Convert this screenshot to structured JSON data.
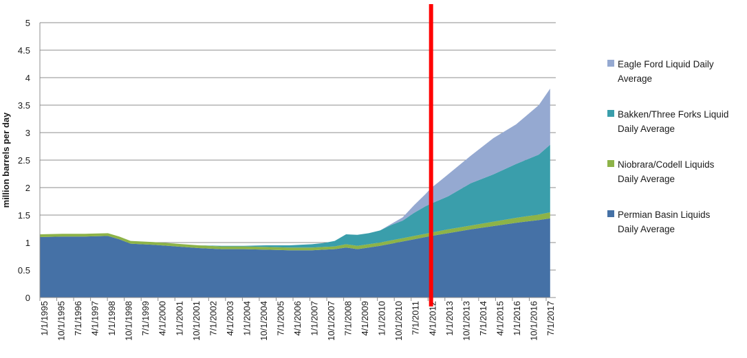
{
  "chart_data": {
    "type": "area",
    "stacked": true,
    "ylabel": "million barrels per day",
    "xlabel": "",
    "ylim": [
      0,
      5
    ],
    "yticks": [
      "0",
      "0.5",
      "1",
      "1.5",
      "2",
      "2.5",
      "3",
      "3.5",
      "4",
      "4.5",
      "5"
    ],
    "grid": true,
    "legend_position": "right",
    "x_tick_labels": [
      "1/1/1995",
      "10/1/1995",
      "7/1/1996",
      "4/1/1997",
      "1/1/1998",
      "10/1/1998",
      "7/1/1999",
      "4/1/2000",
      "1/1/2001",
      "10/1/2001",
      "7/1/2002",
      "4/1/2003",
      "1/1/2004",
      "10/1/2004",
      "7/1/2005",
      "4/1/2006",
      "1/1/2007",
      "10/1/2007",
      "7/1/2008",
      "4/1/2009",
      "1/1/2010",
      "10/1/2010",
      "7/1/2011",
      "4/1/2012",
      "1/1/2013",
      "10/1/2013",
      "7/1/2014",
      "4/1/2015",
      "1/1/2016",
      "10/1/2016",
      "7/1/2017"
    ],
    "x": [
      1995.0,
      1996.0,
      1997.0,
      1998.0,
      1998.5,
      1999.0,
      2000.0,
      2001.0,
      2002.0,
      2003.0,
      2004.0,
      2005.0,
      2006.0,
      2007.0,
      2007.5,
      2008.0,
      2008.5,
      2009.0,
      2009.5,
      2010.0,
      2010.5,
      2011.0,
      2011.5,
      2012.0,
      2012.25,
      2013.0,
      2014.0,
      2015.0,
      2016.0,
      2017.0,
      2017.5
    ],
    "series": [
      {
        "name": "Permian Basin Liquids Daily Average",
        "color": "#4571a6",
        "values": [
          1.1,
          1.11,
          1.11,
          1.12,
          1.06,
          0.98,
          0.96,
          0.93,
          0.9,
          0.88,
          0.88,
          0.87,
          0.86,
          0.86,
          0.87,
          0.88,
          0.91,
          0.88,
          0.91,
          0.94,
          0.98,
          1.02,
          1.06,
          1.1,
          1.12,
          1.17,
          1.24,
          1.3,
          1.36,
          1.41,
          1.44
        ]
      },
      {
        "name": "Niobrara/Codell Liquids Daily Average",
        "color": "#8db348",
        "values": [
          0.05,
          0.05,
          0.05,
          0.05,
          0.05,
          0.05,
          0.05,
          0.05,
          0.05,
          0.05,
          0.05,
          0.05,
          0.05,
          0.05,
          0.05,
          0.05,
          0.06,
          0.06,
          0.06,
          0.06,
          0.06,
          0.06,
          0.06,
          0.06,
          0.06,
          0.07,
          0.07,
          0.08,
          0.09,
          0.1,
          0.11
        ]
      },
      {
        "name": "Bakken/Three Forks Liquid Daily Average",
        "color": "#3a9eab",
        "values": [
          0.0,
          0.0,
          0.0,
          0.0,
          0.0,
          0.0,
          0.0,
          0.0,
          0.0,
          0.01,
          0.01,
          0.03,
          0.04,
          0.06,
          0.07,
          0.1,
          0.18,
          0.2,
          0.2,
          0.22,
          0.28,
          0.32,
          0.42,
          0.5,
          0.53,
          0.6,
          0.77,
          0.86,
          0.98,
          1.09,
          1.23
        ]
      },
      {
        "name": "Eagle Ford Liquid Daily Average",
        "color": "#95a9d1",
        "values": [
          0.0,
          0.0,
          0.0,
          0.0,
          0.0,
          0.0,
          0.0,
          0.0,
          0.0,
          0.0,
          0.0,
          0.0,
          0.0,
          0.0,
          0.0,
          0.0,
          0.0,
          0.0,
          0.0,
          0.0,
          0.02,
          0.06,
          0.14,
          0.22,
          0.28,
          0.4,
          0.5,
          0.66,
          0.72,
          0.9,
          1.02
        ]
      }
    ],
    "marker_line": {
      "x": 2012.25,
      "color": "#ff0000"
    }
  }
}
